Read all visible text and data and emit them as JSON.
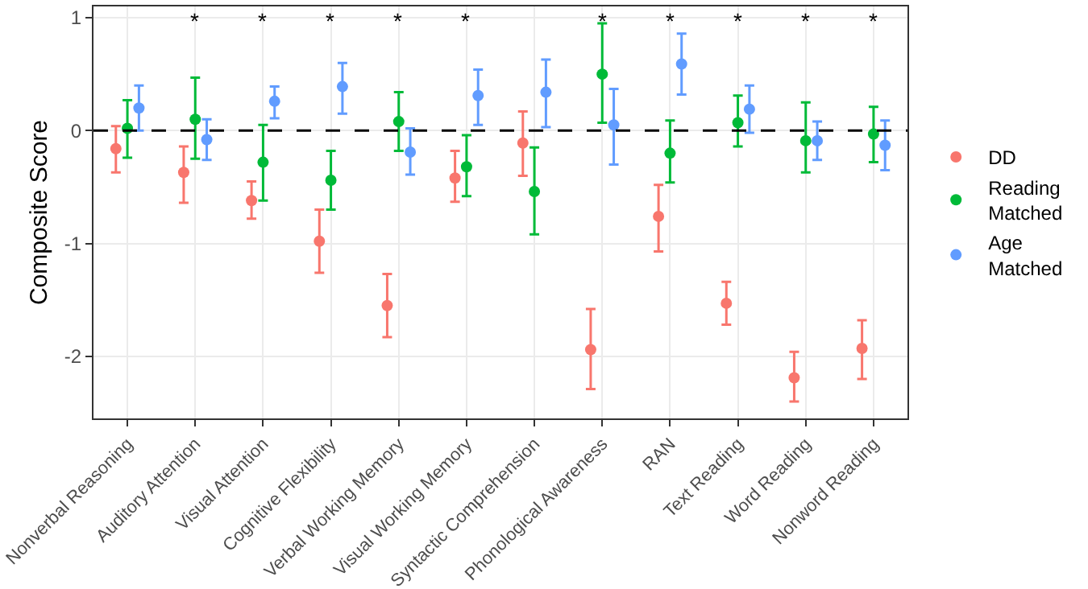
{
  "chart_data": {
    "type": "scatter",
    "ylabel": "Composite Score",
    "categories": [
      "Nonverbal Reasoning",
      "Auditory Attention",
      "Visual Attention",
      "Cognitive Flexibility",
      "Verbal Working Memory",
      "Visual Working Memory",
      "Syntactic Comprehension",
      "Phonological Awareness",
      "RAN",
      "Text Reading",
      "Word Reading",
      "Nonword Reading"
    ],
    "series": [
      {
        "name": "DD",
        "color": "#f8766d",
        "values": [
          -0.16,
          -0.37,
          -0.62,
          -0.98,
          -1.55,
          -0.42,
          -0.11,
          -1.94,
          -0.76,
          -1.53,
          -2.19,
          -1.93
        ],
        "errors": [
          [
            -0.37,
            0.04
          ],
          [
            -0.64,
            -0.14
          ],
          [
            -0.78,
            -0.45
          ],
          [
            -1.26,
            -0.7
          ],
          [
            -1.83,
            -1.27
          ],
          [
            -0.63,
            -0.18
          ],
          [
            -0.4,
            0.17
          ],
          [
            -2.29,
            -1.58
          ],
          [
            -1.07,
            -0.48
          ],
          [
            -1.72,
            -1.34
          ],
          [
            -2.4,
            -1.96
          ],
          [
            -2.2,
            -1.68
          ]
        ]
      },
      {
        "name": "Reading Matched",
        "color": "#00ba38",
        "values": [
          0.02,
          0.1,
          -0.28,
          -0.44,
          0.08,
          -0.32,
          -0.54,
          0.5,
          -0.2,
          0.07,
          -0.09,
          -0.03
        ],
        "errors": [
          [
            -0.24,
            0.27
          ],
          [
            -0.25,
            0.47
          ],
          [
            -0.62,
            0.05
          ],
          [
            -0.7,
            -0.18
          ],
          [
            -0.18,
            0.34
          ],
          [
            -0.58,
            -0.04
          ],
          [
            -0.92,
            -0.15
          ],
          [
            0.07,
            0.95
          ],
          [
            -0.46,
            0.09
          ],
          [
            -0.14,
            0.31
          ],
          [
            -0.37,
            0.25
          ],
          [
            -0.28,
            0.21
          ]
        ]
      },
      {
        "name": "Age Matched",
        "color": "#619cff",
        "values": [
          0.2,
          -0.08,
          0.26,
          0.39,
          -0.19,
          0.31,
          0.34,
          0.05,
          0.59,
          0.19,
          -0.09,
          -0.13
        ],
        "errors": [
          [
            0,
            0.4
          ],
          [
            -0.26,
            0.1
          ],
          [
            0.11,
            0.39
          ],
          [
            0.15,
            0.6
          ],
          [
            -0.39,
            0.02
          ],
          [
            0.05,
            0.54
          ],
          [
            0.03,
            0.63
          ],
          [
            -0.3,
            0.37
          ],
          [
            0.32,
            0.86
          ],
          [
            -0.02,
            0.4
          ],
          [
            -0.26,
            0.08
          ],
          [
            -0.35,
            0.09
          ]
        ]
      }
    ],
    "ylim": [
      -2.55,
      1.1
    ],
    "yticks": [
      -2,
      -1,
      0,
      1
    ],
    "grid": true,
    "legend": "right",
    "marker": "circle",
    "ref_lines": [
      {
        "axis": "y",
        "value": 0,
        "color": "#000000",
        "line_style": "dashed"
      }
    ],
    "annotations": [
      "*",
      "*",
      "*",
      "*",
      "*",
      "*",
      "*",
      "*",
      "*",
      "*"
    ]
  }
}
